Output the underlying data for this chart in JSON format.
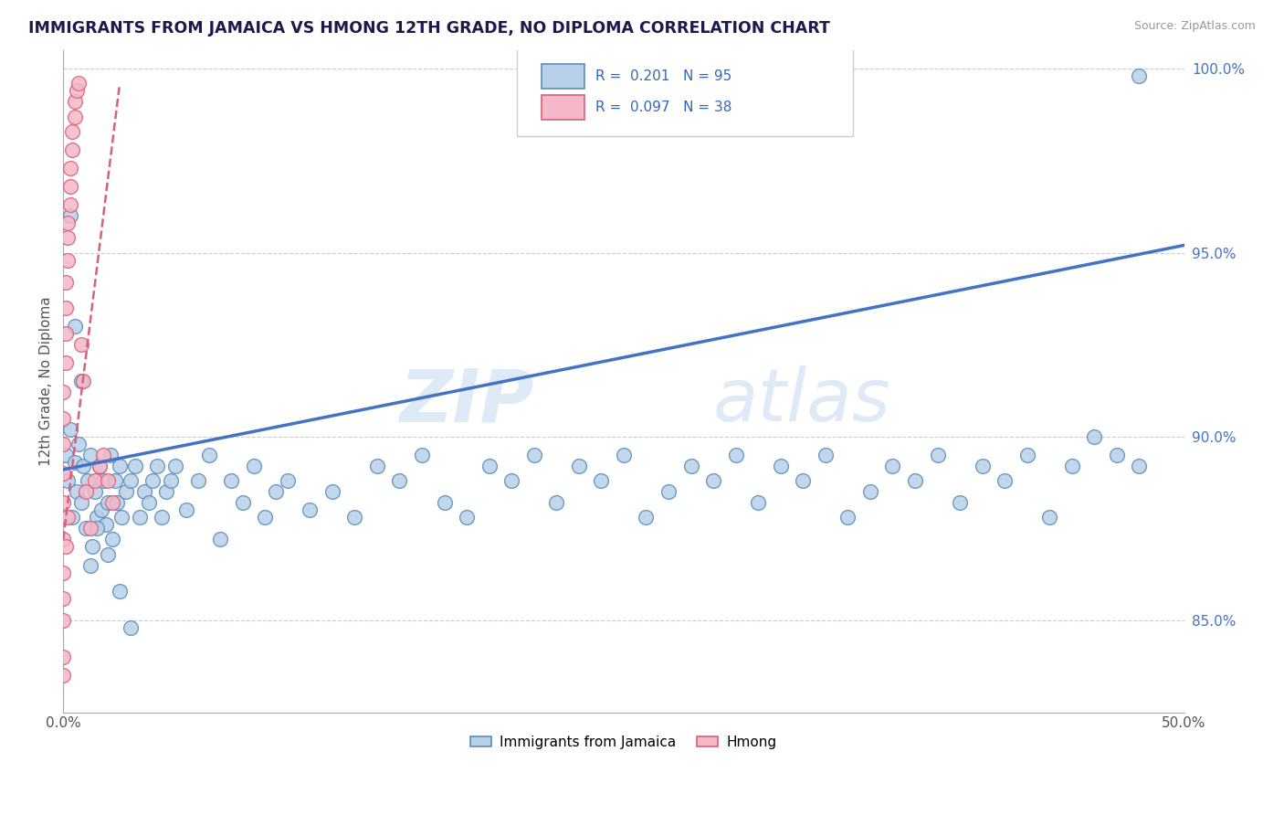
{
  "title": "IMMIGRANTS FROM JAMAICA VS HMONG 12TH GRADE, NO DIPLOMA CORRELATION CHART",
  "source_text": "Source: ZipAtlas.com",
  "ylabel": "12th Grade, No Diploma",
  "xlim": [
    0.0,
    0.5
  ],
  "ylim": [
    0.825,
    1.005
  ],
  "ytick_values": [
    0.85,
    0.9,
    0.95,
    1.0
  ],
  "ytick_labels": [
    "85.0%",
    "90.0%",
    "95.0%",
    "100.0%"
  ],
  "xtick_values": [
    0.0,
    0.5
  ],
  "xtick_labels": [
    "0.0%",
    "50.0%"
  ],
  "legend_blue_label": "Immigrants from Jamaica",
  "legend_pink_label": "Hmong",
  "R_blue": "0.201",
  "N_blue": "95",
  "R_pink": "0.097",
  "N_pink": "38",
  "blue_color": "#b8d0e8",
  "blue_edge_color": "#5b8db8",
  "pink_color": "#f5b8c8",
  "pink_edge_color": "#d8607a",
  "blue_line_color": "#4472c4",
  "pink_line_color": "#e06080",
  "watermark_color": "#dceaf5",
  "blue_line_x0": 0.0,
  "blue_line_y0": 0.891,
  "blue_line_x1": 0.5,
  "blue_line_y1": 0.952,
  "pink_line_x0": 0.0,
  "pink_line_y0": 0.872,
  "pink_line_x1": 0.025,
  "pink_line_y1": 0.995,
  "blue_scatter_x": [
    0.001,
    0.002,
    0.003,
    0.004,
    0.005,
    0.006,
    0.007,
    0.008,
    0.009,
    0.01,
    0.011,
    0.012,
    0.013,
    0.014,
    0.015,
    0.016,
    0.017,
    0.018,
    0.019,
    0.02,
    0.021,
    0.022,
    0.023,
    0.024,
    0.025,
    0.026,
    0.028,
    0.03,
    0.032,
    0.034,
    0.036,
    0.038,
    0.04,
    0.042,
    0.044,
    0.046,
    0.048,
    0.05,
    0.055,
    0.06,
    0.065,
    0.07,
    0.075,
    0.08,
    0.085,
    0.09,
    0.095,
    0.1,
    0.11,
    0.12,
    0.13,
    0.14,
    0.15,
    0.16,
    0.17,
    0.18,
    0.19,
    0.2,
    0.21,
    0.22,
    0.23,
    0.24,
    0.25,
    0.26,
    0.27,
    0.28,
    0.29,
    0.3,
    0.31,
    0.32,
    0.33,
    0.34,
    0.35,
    0.36,
    0.37,
    0.38,
    0.39,
    0.4,
    0.41,
    0.42,
    0.43,
    0.44,
    0.45,
    0.46,
    0.47,
    0.48,
    0.003,
    0.005,
    0.008,
    0.012,
    0.015,
    0.02,
    0.025,
    0.03,
    0.48
  ],
  "blue_scatter_y": [
    0.895,
    0.888,
    0.902,
    0.878,
    0.893,
    0.885,
    0.898,
    0.882,
    0.892,
    0.875,
    0.888,
    0.895,
    0.87,
    0.885,
    0.878,
    0.892,
    0.88,
    0.888,
    0.876,
    0.882,
    0.895,
    0.872,
    0.888,
    0.882,
    0.892,
    0.878,
    0.885,
    0.888,
    0.892,
    0.878,
    0.885,
    0.882,
    0.888,
    0.892,
    0.878,
    0.885,
    0.888,
    0.892,
    0.88,
    0.888,
    0.895,
    0.872,
    0.888,
    0.882,
    0.892,
    0.878,
    0.885,
    0.888,
    0.88,
    0.885,
    0.878,
    0.892,
    0.888,
    0.895,
    0.882,
    0.878,
    0.892,
    0.888,
    0.895,
    0.882,
    0.892,
    0.888,
    0.895,
    0.878,
    0.885,
    0.892,
    0.888,
    0.895,
    0.882,
    0.892,
    0.888,
    0.895,
    0.878,
    0.885,
    0.892,
    0.888,
    0.895,
    0.882,
    0.892,
    0.888,
    0.895,
    0.878,
    0.892,
    0.9,
    0.895,
    0.892,
    0.96,
    0.93,
    0.915,
    0.865,
    0.875,
    0.868,
    0.858,
    0.848,
    0.998
  ],
  "pink_scatter_x": [
    0.0,
    0.0,
    0.0,
    0.0,
    0.0,
    0.0,
    0.0,
    0.0,
    0.0,
    0.0,
    0.001,
    0.001,
    0.001,
    0.001,
    0.002,
    0.002,
    0.002,
    0.003,
    0.003,
    0.003,
    0.004,
    0.004,
    0.005,
    0.005,
    0.006,
    0.007,
    0.008,
    0.009,
    0.01,
    0.012,
    0.014,
    0.016,
    0.018,
    0.02,
    0.022,
    0.0,
    0.001,
    0.002
  ],
  "pink_scatter_y": [
    0.835,
    0.85,
    0.863,
    0.872,
    0.882,
    0.89,
    0.898,
    0.905,
    0.912,
    0.84,
    0.92,
    0.928,
    0.935,
    0.942,
    0.948,
    0.954,
    0.958,
    0.963,
    0.968,
    0.973,
    0.978,
    0.983,
    0.987,
    0.991,
    0.994,
    0.996,
    0.925,
    0.915,
    0.885,
    0.875,
    0.888,
    0.892,
    0.895,
    0.888,
    0.882,
    0.856,
    0.87,
    0.878
  ]
}
